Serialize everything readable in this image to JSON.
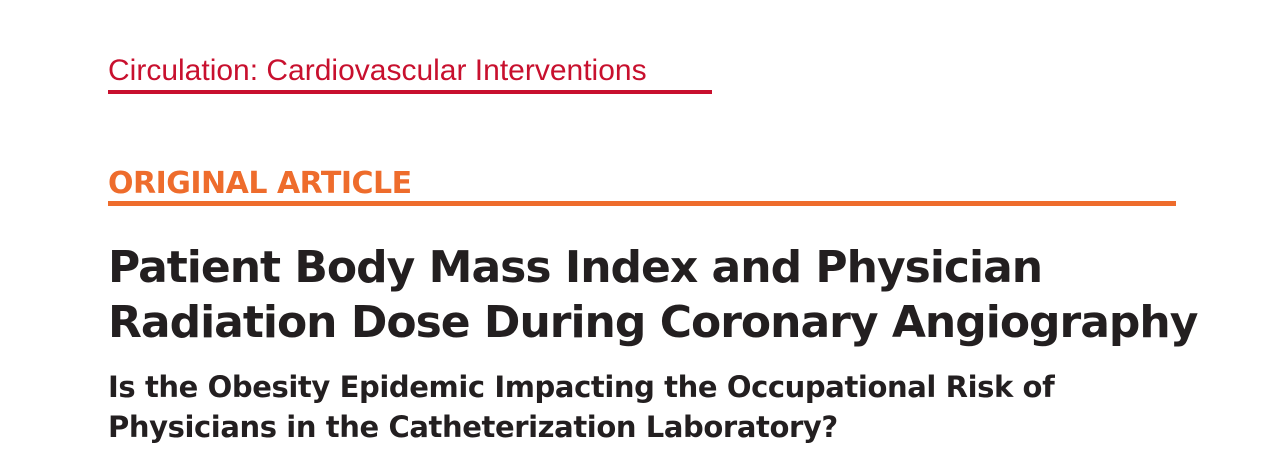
{
  "journal": {
    "name": "Circulation: Cardiovascular Interventions",
    "color": "#c8102e"
  },
  "section": {
    "label": "ORIGINAL ARTICLE",
    "color": "#ee6c2c"
  },
  "article": {
    "title_lines": [
      "Patient Body Mass Index and Physician",
      "Radiation Dose During Coronary Angiography"
    ],
    "subtitle_lines": [
      "Is the Obesity Epidemic Impacting the Occupational Risk of",
      "Physicians in the Catheterization Laboratory?"
    ]
  }
}
